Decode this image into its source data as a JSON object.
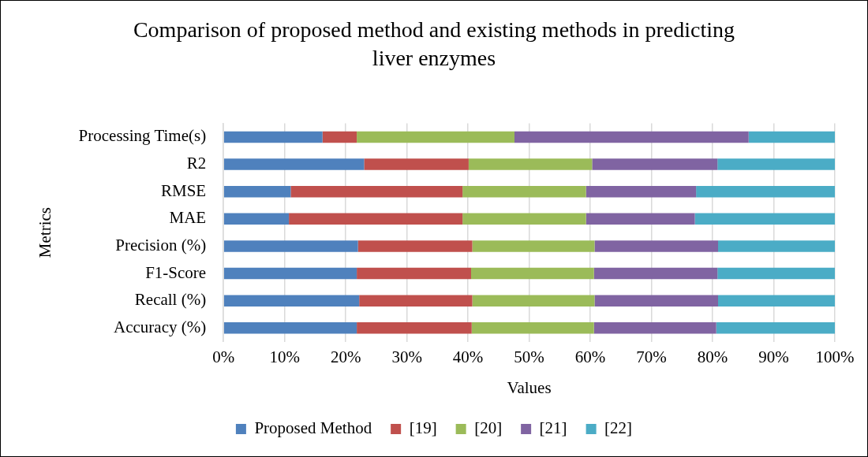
{
  "chart_data": {
    "type": "bar",
    "orientation": "horizontal",
    "stacked": true,
    "title": "Comparison of proposed method and existing methods in predicting liver enzymes",
    "xlabel": "Values",
    "ylabel": "Metrics",
    "categories": [
      "Processing Time(s)",
      "R2",
      "RMSE",
      "MAE",
      "Precision (%)",
      "F1-Score",
      "Recall (%)",
      "Accuracy (%)"
    ],
    "series": [
      {
        "name": "Proposed Method",
        "color": "#4f81bd",
        "values": [
          16.2,
          23.0,
          11.0,
          10.7,
          22.0,
          21.8,
          22.2,
          21.8
        ]
      },
      {
        "name": "[19]",
        "color": "#c0504d",
        "values": [
          5.6,
          17.1,
          28.1,
          28.4,
          18.7,
          18.7,
          18.5,
          18.8
        ]
      },
      {
        "name": "[20]",
        "color": "#9bbb59",
        "values": [
          25.8,
          20.2,
          20.2,
          20.2,
          20.0,
          20.1,
          20.0,
          20.0
        ]
      },
      {
        "name": "[21]",
        "color": "#8064a2",
        "values": [
          38.3,
          20.5,
          18.0,
          17.8,
          20.2,
          20.2,
          20.2,
          20.0
        ]
      },
      {
        "name": "[22]",
        "color": "#4bacc6",
        "values": [
          14.1,
          19.2,
          22.7,
          22.9,
          19.1,
          19.2,
          19.1,
          19.4
        ]
      }
    ],
    "xlim": [
      0,
      100
    ],
    "xticks": [
      {
        "value": 0,
        "label": "0%"
      },
      {
        "value": 10,
        "label": "10%"
      },
      {
        "value": 20,
        "label": "20%"
      },
      {
        "value": 30,
        "label": "30%"
      },
      {
        "value": 40,
        "label": "40%"
      },
      {
        "value": 50,
        "label": "50%"
      },
      {
        "value": 60,
        "label": "60%"
      },
      {
        "value": 70,
        "label": "70%"
      },
      {
        "value": 80,
        "label": "80%"
      },
      {
        "value": 90,
        "label": "90%"
      },
      {
        "value": 100,
        "label": "100%"
      }
    ],
    "grid": "x",
    "legend": "bottom"
  }
}
